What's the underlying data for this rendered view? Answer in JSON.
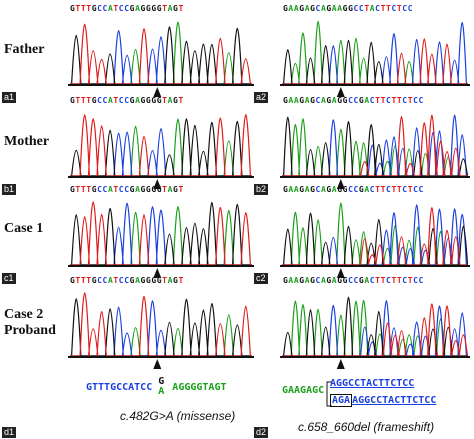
{
  "colors": {
    "A": "#1aa01a",
    "C": "#1a3fe0",
    "G": "#111111",
    "T": "#e01a1a"
  },
  "rows": [
    {
      "label": "Father"
    },
    {
      "label": "Mother"
    },
    {
      "label": "Case 1"
    },
    {
      "label": "Case 2\nProband"
    }
  ],
  "panels": {
    "left": [
      "a1",
      "b1",
      "c1",
      "d1"
    ],
    "right": [
      "a2",
      "b2",
      "c2",
      "d2"
    ]
  },
  "sequences": {
    "left": "GTTTGCCATCCGAGGGGTAGT",
    "right": "GAAGAGCAGAAGGCCTACTTCTCC",
    "right_het": "GAAGAGCAGAGGCCGACTTCTTCTCC"
  },
  "annotations": {
    "left_mutation": "c.482G>A (missense)",
    "right_mutation": "c.658_660del (frameshift)",
    "left_seq_prefix": "GTTTGCCATCC",
    "left_seq_het_top": "G",
    "left_seq_het_bottom": "A",
    "left_seq_suffix": "AGGGGTAGT",
    "right_seq_prefix": "GAAGAGC",
    "right_seq_line1": "AGGCCTACTTCTCC",
    "right_seq_line2_boxed": "AGA",
    "right_seq_line2_rest": "AGGCCTACTTCTCC"
  }
}
